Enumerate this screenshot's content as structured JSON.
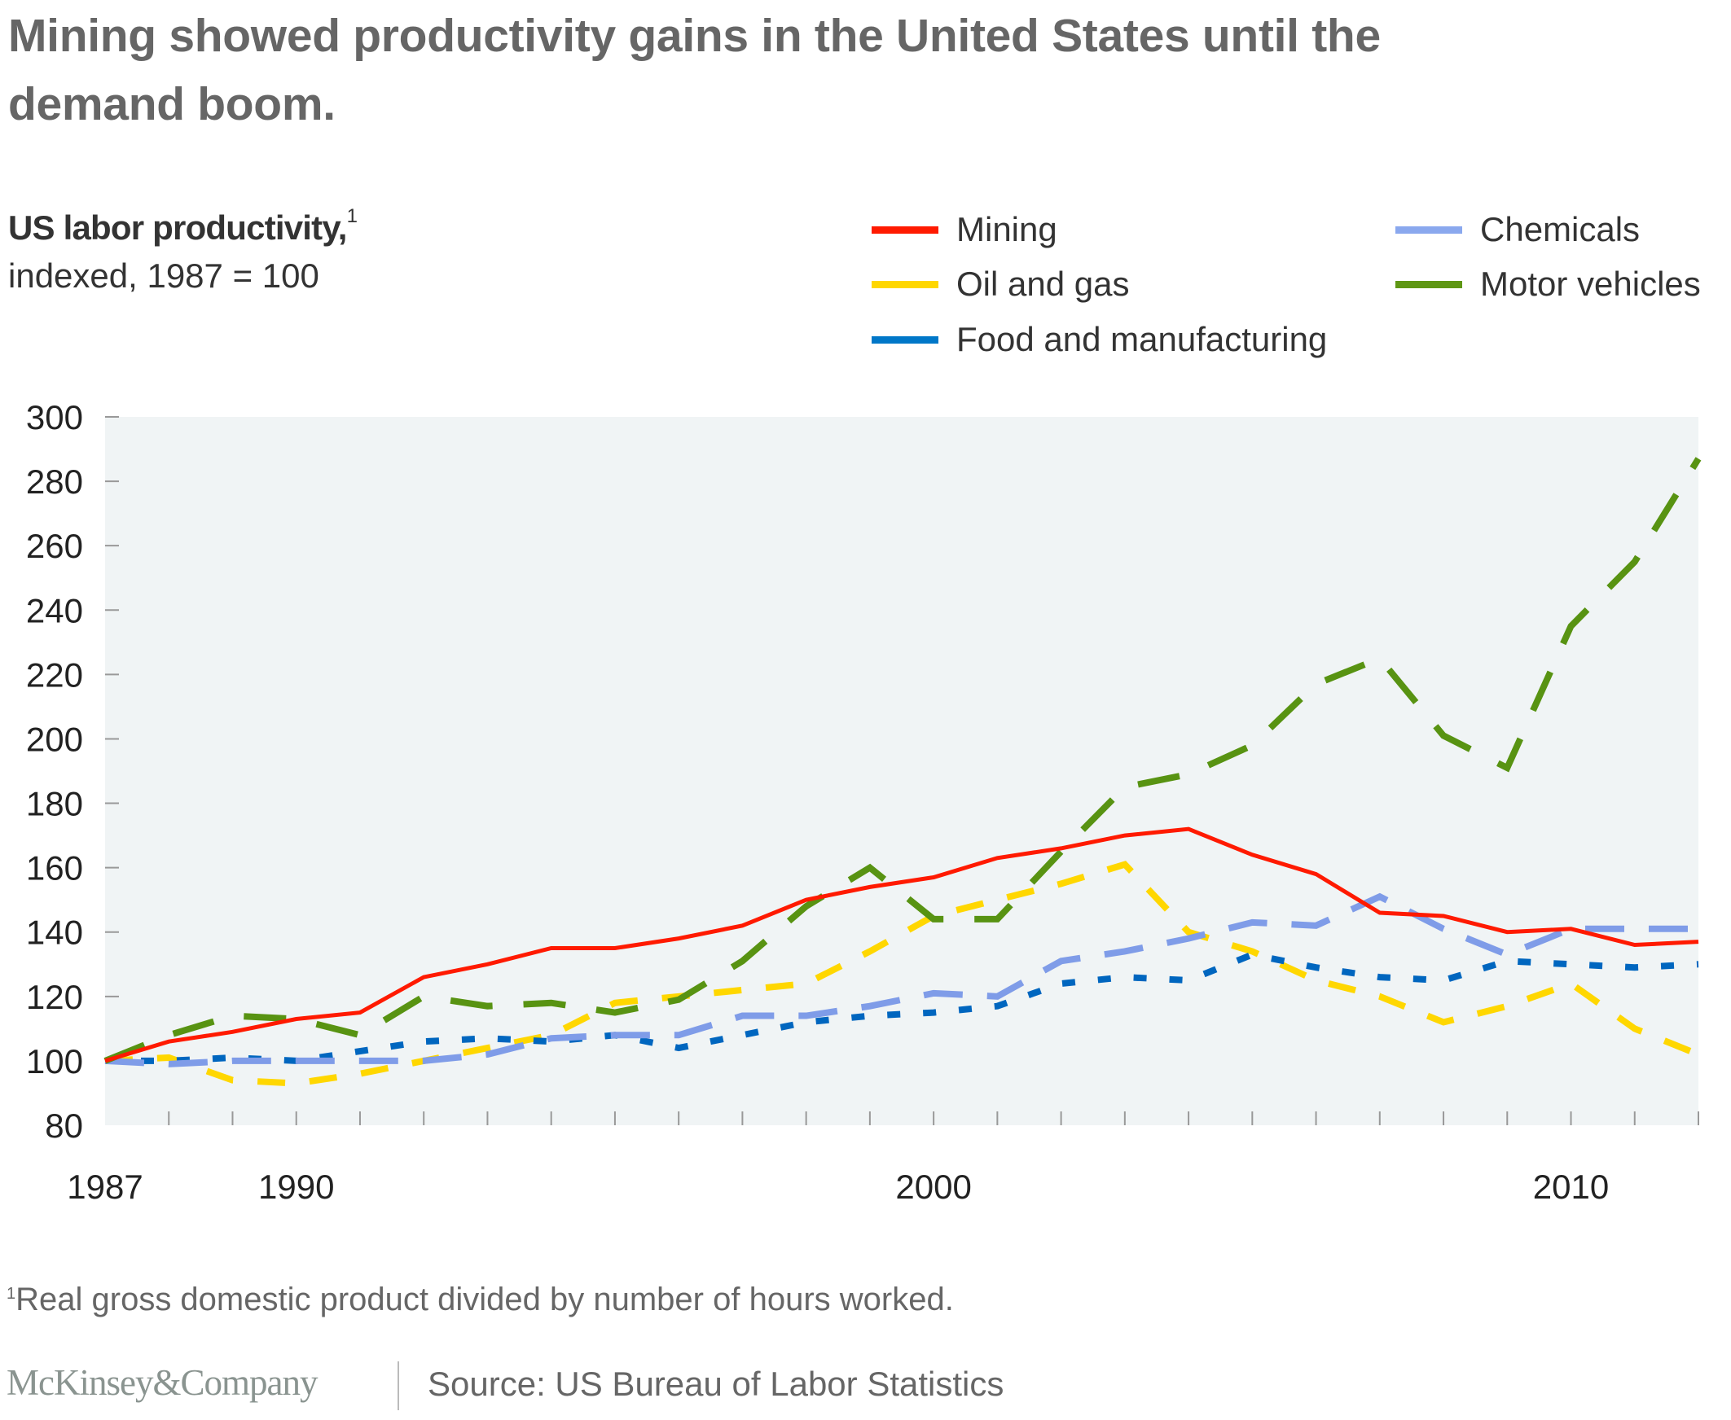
{
  "header": {
    "title": "Mining showed productivity gains in the United States until the demand boom.",
    "unit_title": "US labor productivity,",
    "unit_title_sup": "1",
    "unit_subtitle": "indexed, 1987 = 100"
  },
  "footer": {
    "footnote_marker": "1",
    "footnote": "Real gross domestic product divided by number of hours worked.",
    "logo": "McKinsey&Company",
    "source": "Source: US Bureau of Labor Statistics"
  },
  "chart_data": {
    "type": "line",
    "title": "US labor productivity, indexed, 1987 = 100",
    "xlabel": "",
    "ylabel": "",
    "x": [
      1987,
      1988,
      1989,
      1990,
      1991,
      1992,
      1993,
      1994,
      1995,
      1996,
      1997,
      1998,
      1999,
      2000,
      2001,
      2002,
      2003,
      2004,
      2005,
      2006,
      2007,
      2008,
      2009,
      2010,
      2011,
      2012
    ],
    "xlim": [
      1987,
      2012
    ],
    "ylim": [
      80,
      300
    ],
    "x_tick_labels": [
      "1987",
      "1990",
      "2000",
      "2010"
    ],
    "x_tick_label_years": [
      1987,
      1990,
      2000,
      2010
    ],
    "y_ticks": [
      80,
      100,
      120,
      140,
      160,
      180,
      200,
      220,
      240,
      260,
      280,
      300
    ],
    "grid": false,
    "background": "#f0f4f5",
    "legend_position": "top-right",
    "series": [
      {
        "name": "Mining",
        "color": "#ff1a00",
        "style": "solid",
        "values": [
          100,
          106,
          109,
          113,
          115,
          126,
          130,
          135,
          135,
          138,
          142,
          150,
          154,
          157,
          163,
          166,
          170,
          172,
          164,
          158,
          146,
          145,
          140,
          141,
          136,
          137
        ]
      },
      {
        "name": "Oil and gas",
        "color": "#ffd700",
        "style": "dashed",
        "values": [
          100,
          101,
          94,
          93,
          96,
          100,
          104,
          108,
          118,
          120,
          122,
          124,
          134,
          145,
          150,
          155,
          161,
          140,
          134,
          125,
          120,
          112,
          117,
          124,
          110,
          102
        ]
      },
      {
        "name": "Food and manufacturing",
        "color": "#0066bf",
        "style": "dotted",
        "values": [
          100,
          100,
          101,
          100,
          103,
          106,
          107,
          106,
          108,
          104,
          108,
          112,
          114,
          115,
          117,
          124,
          126,
          125,
          133,
          129,
          126,
          125,
          131,
          130,
          129,
          130
        ]
      },
      {
        "name": "Chemicals",
        "color": "#7f9ce8",
        "style": "dashed",
        "values": [
          100,
          99,
          100,
          100,
          100,
          100,
          102,
          107,
          108,
          108,
          114,
          114,
          117,
          121,
          120,
          131,
          134,
          138,
          143,
          142,
          151,
          141,
          133,
          141,
          141,
          141
        ]
      },
      {
        "name": "Motor vehicles",
        "color": "#589312",
        "style": "dashed",
        "values": [
          100,
          108,
          114,
          113,
          108,
          120,
          117,
          118,
          115,
          119,
          131,
          148,
          160,
          144,
          144,
          165,
          185,
          189,
          198,
          217,
          225,
          201,
          191,
          235,
          255,
          287
        ]
      }
    ]
  }
}
